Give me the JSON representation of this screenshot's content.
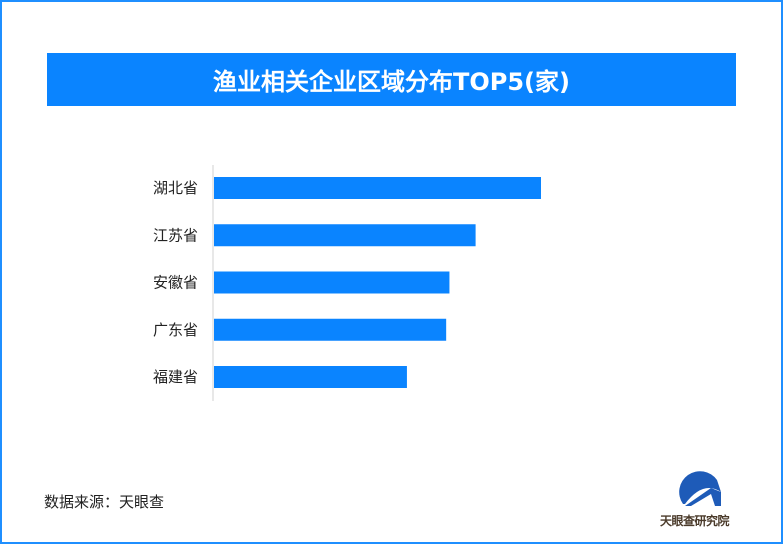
{
  "chart_data": {
    "type": "bar",
    "orientation": "horizontal",
    "title": "渔业相关企业区域分布TOP5(家)",
    "categories": [
      "湖北省",
      "江苏省",
      "安徽省",
      "广东省",
      "福建省"
    ],
    "values": [
      100,
      80,
      72,
      71,
      59
    ],
    "xlabel": "",
    "ylabel": "",
    "grid": false,
    "bar_color": "#0a84ff"
  },
  "source": "数据来源：天眼查",
  "logo_text": "天眼查研究院",
  "colors": {
    "accent": "#0a84ff",
    "border": "#1f8fff"
  }
}
